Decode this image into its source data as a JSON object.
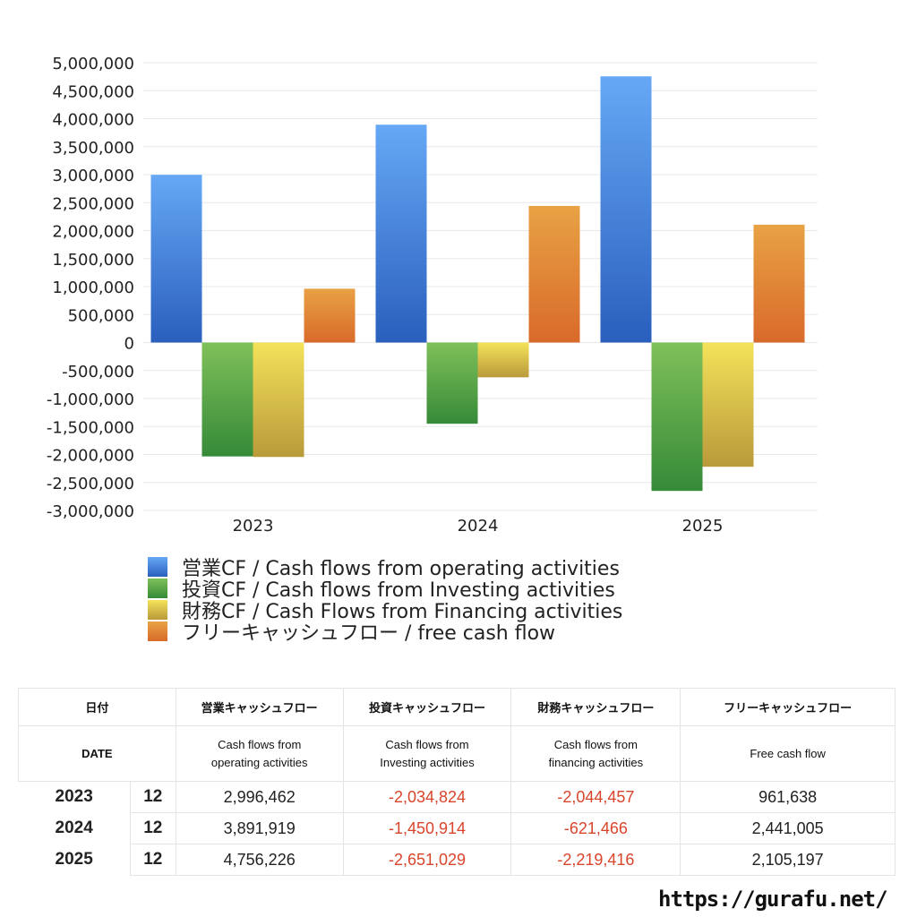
{
  "chart_data": {
    "type": "bar",
    "categories": [
      "2023",
      "2024",
      "2025"
    ],
    "ylim": [
      -3000000,
      5000000
    ],
    "yticks": [
      "5,000,000",
      "4,500,000",
      "4,000,000",
      "3,500,000",
      "3,000,000",
      "2,500,000",
      "2,000,000",
      "1,500,000",
      "1,000,000",
      "500,000",
      "0",
      "-500,000",
      "-1,000,000",
      "-1,500,000",
      "-2,000,000",
      "-2,500,000",
      "-3,000,000"
    ],
    "grid": true,
    "legend_position": "bottom",
    "series": [
      {
        "name": "営業CF / Cash flows from operating activities",
        "values": [
          2996462,
          3891919,
          4756226
        ],
        "colors": [
          "#66a8f5",
          "#2a5fbd"
        ]
      },
      {
        "name": "投資CF / Cash flows from Investing activities",
        "values": [
          -2034824,
          -1450914,
          -2651029
        ],
        "colors": [
          "#7fc05a",
          "#368a38"
        ]
      },
      {
        "name": "財務CF / Cash Flows from Financing activities",
        "values": [
          -2044457,
          -621466,
          -2219416
        ],
        "colors": [
          "#f4e25a",
          "#b99a3a"
        ]
      },
      {
        "name": "フリーキャッシュフロー / free cash flow",
        "values": [
          961638,
          2441005,
          2105197
        ],
        "colors": [
          "#e8a244",
          "#d96a2a"
        ]
      }
    ]
  },
  "table": {
    "headers_jp": [
      "日付",
      "営業キャッシュフロー",
      "投資キャッシュフロー",
      "財務キャッシュフロー",
      "フリーキャッシュフロー"
    ],
    "headers_en": [
      "DATE",
      "Cash flows from operating activities",
      "Cash flows from Investing activities",
      "Cash flows from financing activities",
      "Free cash flow"
    ],
    "rows": [
      {
        "year": "2023",
        "month": "12",
        "op": "2,996,462",
        "inv": "-2,034,824",
        "fin": "-2,044,457",
        "free": "961,638"
      },
      {
        "year": "2024",
        "month": "12",
        "op": "3,891,919",
        "inv": "-1,450,914",
        "fin": "-621,466",
        "free": "2,441,005"
      },
      {
        "year": "2025",
        "month": "12",
        "op": "4,756,226",
        "inv": "-2,651,029",
        "fin": "-2,219,416",
        "free": "2,105,197"
      }
    ]
  },
  "footer_url": "https://gurafu.net/"
}
